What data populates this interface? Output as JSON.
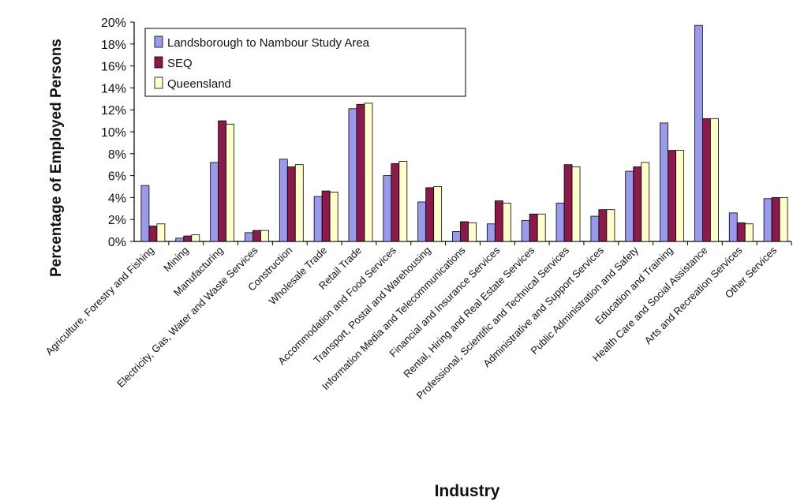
{
  "chart_data": {
    "type": "bar",
    "title": "",
    "xlabel": "Industry",
    "ylabel": "Percentage of Employed Persons",
    "ylim": [
      0,
      20
    ],
    "y_ticks": [
      0,
      2,
      4,
      6,
      8,
      10,
      12,
      14,
      16,
      18,
      20
    ],
    "y_tick_labels": [
      "0%",
      "2%",
      "4%",
      "6%",
      "8%",
      "10%",
      "12%",
      "14%",
      "16%",
      "18%",
      "20%"
    ],
    "grid": false,
    "legend_position": "top-left",
    "categories": [
      "Agriculture, Forestry and Fishing",
      "Mining",
      "Manufacturing",
      "Electricity, Gas, Water and Waste Services",
      "Construction",
      "Wholesale Trade",
      "Retail Trade",
      "Accommodation and Food Services",
      "Transport, Postal and Warehousing",
      "Information Media and Telecommunications",
      "Financial and Insurance Services",
      "Rental, Hiring and Real Estate Services",
      "Professional, Scientific and Technical Services",
      "Administrative and Support Services",
      "Public Administration and Safety",
      "Education and Training",
      "Health Care and Social Assistance",
      "Arts and Recreation Services",
      "Other Services"
    ],
    "series": [
      {
        "name": "Landsborough to Nambour Study Area",
        "color": "#9999ee",
        "values": [
          5.1,
          0.3,
          7.2,
          0.8,
          7.5,
          4.1,
          12.1,
          6.0,
          3.6,
          0.9,
          1.6,
          1.9,
          3.5,
          2.3,
          6.4,
          10.8,
          19.7,
          2.6,
          3.9
        ]
      },
      {
        "name": "SEQ",
        "color": "#8b1a4a",
        "values": [
          1.4,
          0.5,
          11.0,
          1.0,
          6.8,
          4.6,
          12.5,
          7.1,
          4.9,
          1.8,
          3.7,
          2.5,
          7.0,
          2.9,
          6.8,
          8.3,
          11.2,
          1.7,
          4.0
        ]
      },
      {
        "name": "Queensland",
        "color": "#ffffcc",
        "values": [
          1.6,
          0.6,
          10.7,
          1.0,
          7.0,
          4.5,
          12.6,
          7.3,
          5.0,
          1.7,
          3.5,
          2.5,
          6.8,
          2.9,
          7.2,
          8.3,
          11.2,
          1.6,
          4.0
        ]
      }
    ]
  }
}
